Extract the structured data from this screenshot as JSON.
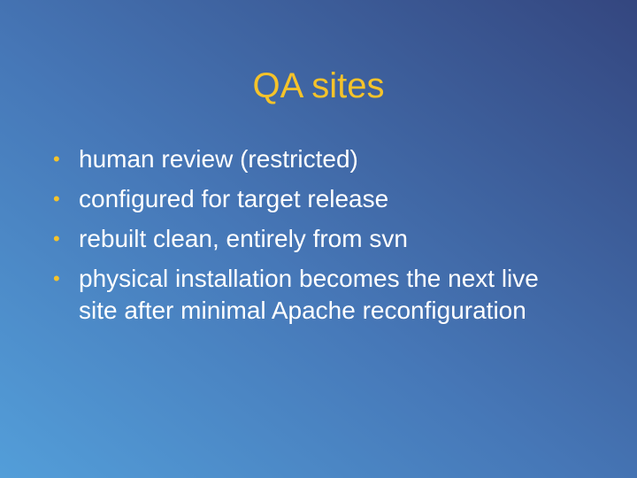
{
  "slide": {
    "title": "QA sites",
    "bullet_symbol": "•",
    "bullets": [
      "human review (restricted)",
      "configured for target release",
      "rebuilt clean, entirely from svn",
      "physical installation becomes the next live site after minimal Apache reconfiguration"
    ]
  },
  "colors": {
    "title": "#f5c32a",
    "bullet_marker": "#f5c32a",
    "text": "#ffffff",
    "background_light": "#539ed9",
    "background_dark": "#34467f"
  }
}
